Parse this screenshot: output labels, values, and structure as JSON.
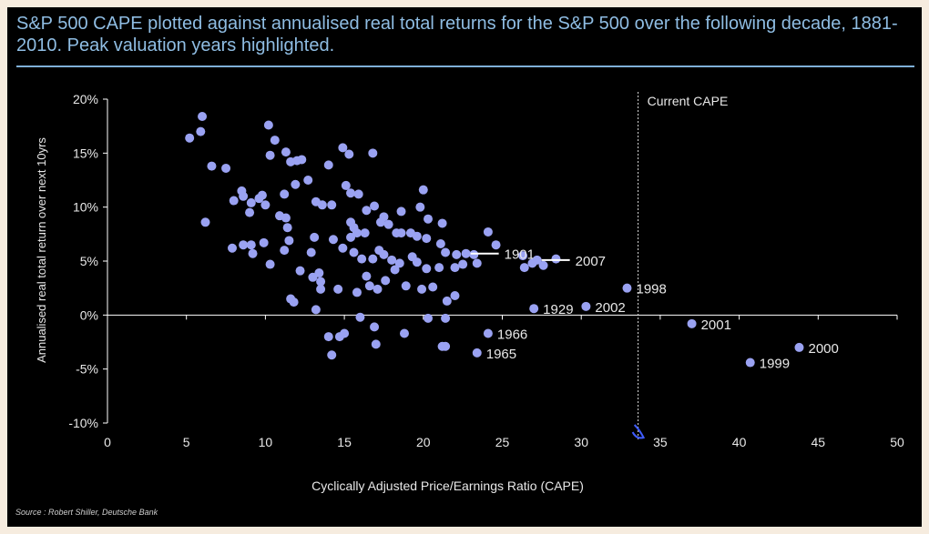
{
  "title": "S&P 500 CAPE plotted against annualised real total returns for the S&P 500 over the following decade, 1881- 2010. Peak valuation years highlighted.",
  "source": "Source : Robert Shiller, Deutsche Bank",
  "colors": {
    "point": "#9aa2f2",
    "title": "#8fbde3",
    "axis": "#ffffff",
    "background": "#000000"
  },
  "chart_data": {
    "type": "scatter",
    "xlabel": "Cyclically Adjusted Price/Earnings Ratio (CAPE)",
    "ylabel": "Annualised real total return over next 10yrs",
    "xlim": [
      0,
      50
    ],
    "ylim": [
      -10,
      20
    ],
    "xticks": [
      0,
      5,
      10,
      15,
      20,
      25,
      30,
      35,
      40,
      45,
      50
    ],
    "yticks": [
      20,
      15,
      10,
      5,
      0,
      -5,
      -10
    ],
    "ytick_labels": [
      "20%",
      "15%",
      "10%",
      "5%",
      "0%",
      "-5%",
      "-10%"
    ],
    "reference_line": {
      "x": 33.6,
      "label": "Current CAPE"
    },
    "highlighted": [
      {
        "year": "1901",
        "x": 22.7,
        "y": 5.7,
        "label_side": "right",
        "leader": true
      },
      {
        "year": "2007",
        "x": 27.2,
        "y": 5.1,
        "label_side": "right",
        "leader": true
      },
      {
        "year": "1998",
        "x": 32.9,
        "y": 2.5,
        "label_side": "right",
        "leader": false
      },
      {
        "year": "1929",
        "x": 27.0,
        "y": 0.6,
        "label_side": "right",
        "leader": false
      },
      {
        "year": "2002",
        "x": 30.3,
        "y": 0.8,
        "label_side": "right",
        "leader": false
      },
      {
        "year": "1966",
        "x": 24.1,
        "y": -1.7,
        "label_side": "right",
        "leader": false
      },
      {
        "year": "1965",
        "x": 23.4,
        "y": -3.5,
        "label_side": "right",
        "leader": false
      },
      {
        "year": "2001",
        "x": 37.0,
        "y": -0.8,
        "label_side": "right",
        "leader": false
      },
      {
        "year": "2000",
        "x": 43.8,
        "y": -3.0,
        "label_side": "right",
        "leader": false
      },
      {
        "year": "1999",
        "x": 40.7,
        "y": -4.4,
        "label_side": "right",
        "leader": false
      }
    ],
    "points": [
      [
        6.0,
        18.4
      ],
      [
        5.9,
        17.0
      ],
      [
        5.2,
        16.4
      ],
      [
        6.6,
        13.8
      ],
      [
        7.5,
        13.6
      ],
      [
        6.2,
        8.6
      ],
      [
        8.0,
        10.6
      ],
      [
        8.5,
        11.5
      ],
      [
        8.6,
        11.0
      ],
      [
        9.1,
        10.4
      ],
      [
        9.0,
        9.5
      ],
      [
        9.6,
        10.8
      ],
      [
        9.8,
        11.1
      ],
      [
        10.0,
        10.2
      ],
      [
        10.2,
        17.6
      ],
      [
        10.6,
        16.2
      ],
      [
        10.3,
        14.8
      ],
      [
        11.3,
        15.1
      ],
      [
        11.6,
        14.2
      ],
      [
        12.0,
        14.3
      ],
      [
        12.3,
        14.4
      ],
      [
        11.9,
        12.1
      ],
      [
        11.2,
        11.2
      ],
      [
        12.7,
        12.5
      ],
      [
        10.9,
        9.2
      ],
      [
        11.3,
        9.0
      ],
      [
        11.4,
        8.1
      ],
      [
        9.9,
        6.7
      ],
      [
        9.1,
        6.5
      ],
      [
        8.6,
        6.5
      ],
      [
        7.9,
        6.2
      ],
      [
        9.2,
        5.7
      ],
      [
        10.3,
        4.7
      ],
      [
        11.2,
        6.0
      ],
      [
        11.5,
        6.9
      ],
      [
        12.9,
        5.8
      ],
      [
        13.1,
        7.2
      ],
      [
        12.2,
        4.1
      ],
      [
        13.4,
        3.9
      ],
      [
        13.0,
        3.5
      ],
      [
        13.5,
        3.1
      ],
      [
        13.5,
        2.4
      ],
      [
        11.6,
        1.5
      ],
      [
        11.8,
        1.2
      ],
      [
        13.2,
        0.5
      ],
      [
        14.0,
        13.9
      ],
      [
        13.2,
        10.5
      ],
      [
        13.6,
        10.2
      ],
      [
        14.2,
        10.2
      ],
      [
        14.9,
        15.5
      ],
      [
        15.3,
        14.9
      ],
      [
        16.8,
        15.0
      ],
      [
        15.1,
        12.0
      ],
      [
        15.4,
        11.3
      ],
      [
        15.9,
        11.2
      ],
      [
        16.4,
        9.7
      ],
      [
        16.9,
        10.1
      ],
      [
        15.4,
        8.6
      ],
      [
        15.6,
        8.1
      ],
      [
        15.8,
        7.6
      ],
      [
        15.4,
        7.2
      ],
      [
        16.3,
        7.6
      ],
      [
        17.3,
        8.6
      ],
      [
        17.5,
        9.1
      ],
      [
        17.8,
        8.4
      ],
      [
        18.3,
        7.6
      ],
      [
        18.6,
        7.6
      ],
      [
        19.2,
        7.6
      ],
      [
        19.6,
        7.3
      ],
      [
        18.6,
        9.6
      ],
      [
        19.8,
        10.0
      ],
      [
        20.0,
        11.6
      ],
      [
        20.3,
        8.9
      ],
      [
        20.2,
        7.1
      ],
      [
        21.2,
        8.5
      ],
      [
        14.3,
        7.0
      ],
      [
        14.9,
        6.2
      ],
      [
        15.6,
        5.8
      ],
      [
        16.1,
        5.2
      ],
      [
        16.8,
        5.2
      ],
      [
        17.2,
        6.0
      ],
      [
        17.5,
        5.6
      ],
      [
        18.0,
        5.1
      ],
      [
        18.5,
        4.8
      ],
      [
        19.3,
        5.4
      ],
      [
        19.6,
        4.9
      ],
      [
        20.2,
        4.3
      ],
      [
        21.0,
        4.4
      ],
      [
        21.1,
        6.6
      ],
      [
        22.0,
        4.4
      ],
      [
        22.5,
        4.7
      ],
      [
        16.4,
        3.6
      ],
      [
        16.6,
        2.7
      ],
      [
        17.1,
        2.4
      ],
      [
        17.6,
        3.2
      ],
      [
        18.2,
        4.2
      ],
      [
        18.9,
        2.7
      ],
      [
        19.9,
        2.4
      ],
      [
        20.6,
        2.6
      ],
      [
        15.8,
        2.1
      ],
      [
        14.6,
        2.4
      ],
      [
        16.0,
        -0.2
      ],
      [
        16.9,
        -1.1
      ],
      [
        17.0,
        -2.7
      ],
      [
        14.0,
        -2.0
      ],
      [
        14.7,
        -2.0
      ],
      [
        15.0,
        -1.7
      ],
      [
        14.2,
        -3.7
      ],
      [
        18.8,
        -1.7
      ],
      [
        20.3,
        -0.3
      ],
      [
        21.4,
        -0.3
      ],
      [
        21.2,
        -2.9
      ],
      [
        21.4,
        -2.9
      ],
      [
        21.5,
        1.3
      ],
      [
        22.0,
        1.8
      ],
      [
        23.4,
        4.8
      ],
      [
        24.1,
        7.7
      ],
      [
        24.6,
        6.5
      ],
      [
        26.3,
        5.5
      ],
      [
        26.4,
        4.4
      ],
      [
        28.4,
        5.2
      ],
      [
        27.6,
        4.6
      ],
      [
        26.9,
        4.8
      ],
      [
        21.4,
        5.8
      ],
      [
        22.1,
        5.6
      ],
      [
        23.2,
        5.6
      ]
    ]
  }
}
